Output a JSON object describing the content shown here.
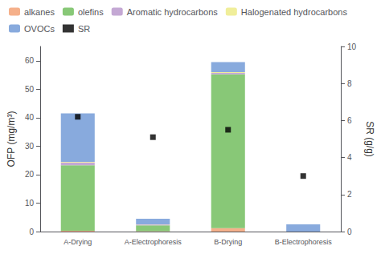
{
  "chart_data": {
    "type": "bar",
    "stacked": true,
    "categories": [
      "A-Drying",
      "A-Electrophoresis",
      "B-Drying",
      "B-Electrophoresis"
    ],
    "series": [
      {
        "name": "alkanes",
        "color": "#F5B08A",
        "values": [
          0.3,
          0.15,
          1.2,
          0.0
        ]
      },
      {
        "name": "olefins",
        "color": "#88C877",
        "values": [
          23.0,
          2.0,
          54.0,
          0.0
        ]
      },
      {
        "name": "Aromatic hydrocarbons",
        "color": "#C4A8D4",
        "values": [
          1.0,
          0.3,
          0.5,
          0.0
        ]
      },
      {
        "name": "Halogenated hydrocarbons",
        "color": "#F0EE9A",
        "values": [
          0.2,
          0.05,
          0.3,
          0.0
        ]
      },
      {
        "name": "OVOCs",
        "color": "#88AADD",
        "values": [
          17.0,
          2.0,
          3.5,
          2.5
        ]
      },
      {
        "name": "SR",
        "type": "scatter",
        "axis": "y2",
        "color": "#000000",
        "marker": "square",
        "values": [
          6.2,
          5.1,
          5.5,
          3.0
        ]
      }
    ],
    "ylabel": "OFP (mg/m³)",
    "y2label": "SR (g/g)",
    "ylim": [
      0,
      65
    ],
    "yticks": [
      0,
      10,
      20,
      30,
      40,
      50,
      60
    ],
    "y2lim": [
      0,
      10
    ],
    "y2ticks": [
      0,
      2,
      4,
      6,
      8,
      10
    ],
    "grid": false,
    "legend": "upper left"
  }
}
